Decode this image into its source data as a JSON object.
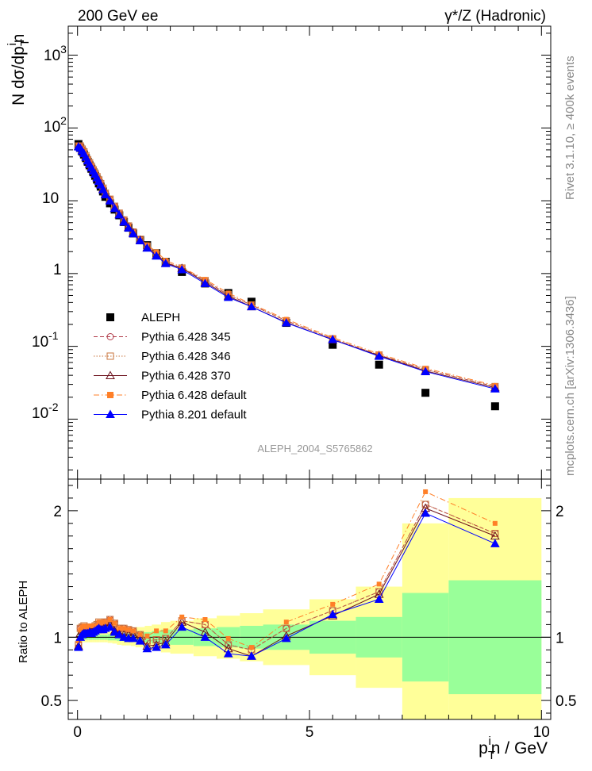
{
  "header": {
    "left_title": "200 GeV ee",
    "right_title": "γ*/Z (Hadronic)"
  },
  "side_labels": {
    "top": "Rivet 3.1.10, ≥ 400k events",
    "bottom": "mcplots.cern.ch [arXiv:1306.3436]"
  },
  "watermark": "ALEPH_2004_S5765862",
  "colors": {
    "data": "#000000",
    "p345": "#b03a48",
    "p346": "#c8743c",
    "p370": "#6b0f1a",
    "pdef": "#ff7f27",
    "p8": "#0000ff",
    "band_inner": "#99ff99",
    "band_outer": "#ffff99"
  },
  "chart_data": [
    {
      "type": "scatter",
      "title": "",
      "ylabel": "N dσ/dp_T^in",
      "yscale": "log",
      "ylim": [
        0.0015,
        2500
      ],
      "xlim": [
        -0.2,
        10.2
      ],
      "x": [
        0.02,
        0.06,
        0.1,
        0.14,
        0.18,
        0.22,
        0.26,
        0.3,
        0.34,
        0.38,
        0.42,
        0.46,
        0.5,
        0.55,
        0.6,
        0.7,
        0.8,
        0.9,
        1.0,
        1.1,
        1.2,
        1.35,
        1.5,
        1.7,
        1.9,
        2.25,
        2.75,
        3.25,
        3.75,
        4.5,
        5.5,
        6.5,
        7.5,
        9.0
      ],
      "series": [
        {
          "name": "ALEPH",
          "marker": "square-filled",
          "color_key": "data",
          "values": [
            60,
            53,
            47.5,
            43.1,
            38.5,
            34.3,
            30.6,
            27.5,
            24.6,
            22.0,
            19.5,
            17.3,
            15.6,
            13.4,
            11.3,
            9.2,
            7.55,
            6.3,
            5.1,
            4.26,
            3.55,
            2.9,
            2.45,
            1.9,
            1.45,
            1.05,
            0.73,
            0.54,
            0.41,
            0.21,
            0.105,
            0.056,
            0.023,
            0.015
          ]
        },
        {
          "name": "Pythia 6.428 345",
          "marker": "circle-open",
          "line": "dashed",
          "color_key": "p345",
          "values": [
            57,
            56.6,
            51.0,
            46.5,
            41.3,
            36.6,
            33.0,
            29.5,
            26.5,
            23.8,
            21.3,
            19.2,
            17.1,
            14.8,
            12.7,
            10.5,
            8.4,
            6.75,
            5.45,
            4.5,
            3.72,
            2.95,
            2.38,
            1.86,
            1.43,
            1.19,
            0.8,
            0.51,
            0.37,
            0.225,
            0.127,
            0.076,
            0.048,
            0.028
          ]
        },
        {
          "name": "Pythia 6.428 346",
          "marker": "square-open",
          "line": "dotted",
          "color_key": "p346",
          "values": [
            56.5,
            56.6,
            51.2,
            46.8,
            41.6,
            36.7,
            33.2,
            29.7,
            26.6,
            23.9,
            21.4,
            19.3,
            17.2,
            14.9,
            12.7,
            10.5,
            8.4,
            6.75,
            5.45,
            4.5,
            3.72,
            2.95,
            2.38,
            1.86,
            1.43,
            1.19,
            0.8,
            0.51,
            0.37,
            0.224,
            0.127,
            0.076,
            0.048,
            0.028
          ]
        },
        {
          "name": "Pythia 6.428 370",
          "marker": "triangle-open",
          "line": "solid",
          "color_key": "p370",
          "values": [
            56,
            54.5,
            49.8,
            45.6,
            40.8,
            36.0,
            32.2,
            28.9,
            26.0,
            23.6,
            21.1,
            18.9,
            16.8,
            14.5,
            12.3,
            10.1,
            7.9,
            6.5,
            5.2,
            4.33,
            3.62,
            2.88,
            2.28,
            1.78,
            1.39,
            1.18,
            0.76,
            0.49,
            0.35,
            0.213,
            0.123,
            0.075,
            0.046,
            0.027
          ]
        },
        {
          "name": "Pythia 6.428 default",
          "marker": "square-filled",
          "line": "dashdot",
          "color_key": "pdef",
          "values": [
            58,
            56.1,
            51.2,
            46.8,
            41.7,
            37.0,
            33.4,
            30.0,
            26.9,
            24.0,
            21.3,
            19.4,
            17.3,
            15.0,
            12.7,
            10.5,
            8.4,
            6.75,
            5.45,
            4.5,
            3.72,
            2.95,
            2.48,
            1.99,
            1.52,
            1.22,
            0.83,
            0.54,
            0.38,
            0.235,
            0.132,
            0.079,
            0.05,
            0.029
          ]
        },
        {
          "name": "Pythia 8.201 default",
          "marker": "triangle-filled",
          "line": "solid",
          "color_key": "p8",
          "values": [
            55,
            52.8,
            48.3,
            44.4,
            39.7,
            35.3,
            31.7,
            28.4,
            25.6,
            23.2,
            20.7,
            18.5,
            16.5,
            14.2,
            12.1,
            9.95,
            7.85,
            6.4,
            5.1,
            4.23,
            3.53,
            2.82,
            2.24,
            1.74,
            1.37,
            1.13,
            0.73,
            0.47,
            0.35,
            0.21,
            0.124,
            0.073,
            0.045,
            0.026
          ]
        }
      ],
      "legend": {
        "position": "bottom-left"
      }
    },
    {
      "type": "line",
      "title": "",
      "ylabel": "Ratio to ALEPH",
      "xlabel": "p_T^in / GeV",
      "ylim": [
        0.35,
        2.25
      ],
      "xlim": [
        -0.2,
        10.2
      ],
      "y_ticks": [
        "0.5",
        "1",
        "2"
      ],
      "x_ticks": [
        "0",
        "5",
        "10"
      ],
      "reference_line": 1,
      "bands": {
        "edges": [
          0,
          0.04,
          0.08,
          0.12,
          0.16,
          0.2,
          0.24,
          0.28,
          0.32,
          0.36,
          0.4,
          0.44,
          0.48,
          0.52,
          0.58,
          0.65,
          0.75,
          0.85,
          0.95,
          1.05,
          1.15,
          1.25,
          1.45,
          1.6,
          1.8,
          2.0,
          2.5,
          3.0,
          3.5,
          4.0,
          5.0,
          6.0,
          7.0,
          8.0,
          10.0
        ],
        "inner": [
          0.03,
          0.02,
          0.02,
          0.02,
          0.02,
          0.02,
          0.02,
          0.02,
          0.02,
          0.02,
          0.02,
          0.02,
          0.02,
          0.02,
          0.02,
          0.025,
          0.025,
          0.03,
          0.03,
          0.03,
          0.035,
          0.04,
          0.04,
          0.05,
          0.06,
          0.06,
          0.07,
          0.08,
          0.09,
          0.1,
          0.13,
          0.16,
          0.35,
          0.45
        ],
        "outer": [
          0.05,
          0.04,
          0.04,
          0.04,
          0.04,
          0.04,
          0.04,
          0.04,
          0.04,
          0.04,
          0.04,
          0.04,
          0.04,
          0.04,
          0.04,
          0.045,
          0.05,
          0.06,
          0.065,
          0.065,
          0.07,
          0.08,
          0.09,
          0.1,
          0.12,
          0.13,
          0.15,
          0.17,
          0.19,
          0.22,
          0.3,
          0.4,
          0.9,
          1.1
        ]
      },
      "x": [
        0.02,
        0.06,
        0.1,
        0.14,
        0.18,
        0.22,
        0.26,
        0.3,
        0.34,
        0.38,
        0.42,
        0.46,
        0.5,
        0.55,
        0.6,
        0.7,
        0.8,
        0.9,
        1.0,
        1.1,
        1.2,
        1.35,
        1.5,
        1.7,
        1.9,
        2.25,
        2.75,
        3.25,
        3.75,
        4.5,
        5.5,
        6.5,
        7.5,
        9.0
      ],
      "series": [
        {
          "name": "Pythia 6.428 345",
          "color_key": "p345",
          "values": [
            0.95,
            1.07,
            1.08,
            1.08,
            1.07,
            1.07,
            1.08,
            1.07,
            1.08,
            1.08,
            1.09,
            1.11,
            1.1,
            1.1,
            1.12,
            1.14,
            1.11,
            1.07,
            1.07,
            1.06,
            1.05,
            1.02,
            0.97,
            0.98,
            0.99,
            1.13,
            1.1,
            0.94,
            0.9,
            1.07,
            1.21,
            1.36,
            2.05,
            1.82
          ]
        },
        {
          "name": "Pythia 6.428 346",
          "color_key": "p346",
          "values": [
            0.94,
            1.07,
            1.08,
            1.09,
            1.08,
            1.07,
            1.08,
            1.08,
            1.08,
            1.09,
            1.1,
            1.12,
            1.1,
            1.11,
            1.12,
            1.14,
            1.11,
            1.07,
            1.07,
            1.06,
            1.05,
            1.02,
            0.97,
            0.98,
            0.99,
            1.13,
            1.1,
            0.94,
            0.9,
            1.07,
            1.21,
            1.36,
            2.05,
            1.82
          ]
        },
        {
          "name": "Pythia 6.428 370",
          "color_key": "p370",
          "values": [
            0.93,
            1.03,
            1.05,
            1.06,
            1.06,
            1.05,
            1.05,
            1.05,
            1.06,
            1.07,
            1.08,
            1.09,
            1.08,
            1.08,
            1.09,
            1.1,
            1.05,
            1.03,
            1.02,
            1.02,
            1.02,
            0.99,
            0.93,
            0.94,
            0.96,
            1.12,
            1.04,
            0.91,
            0.85,
            1.01,
            1.17,
            1.34,
            2.02,
            1.8
          ]
        },
        {
          "name": "Pythia 6.428 default",
          "color_key": "pdef",
          "values": [
            0.97,
            1.06,
            1.08,
            1.09,
            1.08,
            1.08,
            1.09,
            1.09,
            1.09,
            1.09,
            1.09,
            1.12,
            1.11,
            1.12,
            1.12,
            1.14,
            1.11,
            1.07,
            1.07,
            1.06,
            1.05,
            1.02,
            1.01,
            1.05,
            1.05,
            1.16,
            1.14,
            0.99,
            0.92,
            1.12,
            1.26,
            1.42,
            2.15,
            1.9
          ]
        },
        {
          "name": "Pythia 8.201 default",
          "color_key": "p8",
          "values": [
            0.92,
            1.0,
            1.02,
            1.03,
            1.03,
            1.03,
            1.04,
            1.03,
            1.04,
            1.05,
            1.06,
            1.07,
            1.06,
            1.06,
            1.07,
            1.08,
            1.04,
            1.02,
            1.0,
            0.99,
            0.99,
            0.97,
            0.91,
            0.92,
            0.94,
            1.08,
            1.0,
            0.87,
            0.85,
            0.99,
            1.18,
            1.3,
            1.98,
            1.74
          ]
        }
      ]
    }
  ],
  "axes_text": {
    "top_y_ticks": [
      "10",
      "1",
      "10",
      "10",
      "10",
      "10"
    ],
    "top_y_exps": [
      "-2",
      "-1",
      "2",
      "3"
    ],
    "top_ylabel_main": "N dσ/dp",
    "top_ylabel_sub": "T",
    "top_ylabel_sup": "i",
    "top_ylabel_end": "n",
    "xlabel_main": "p",
    "xlabel_sub": "T",
    "xlabel_sup": "i",
    "xlabel_end": "n / GeV"
  }
}
